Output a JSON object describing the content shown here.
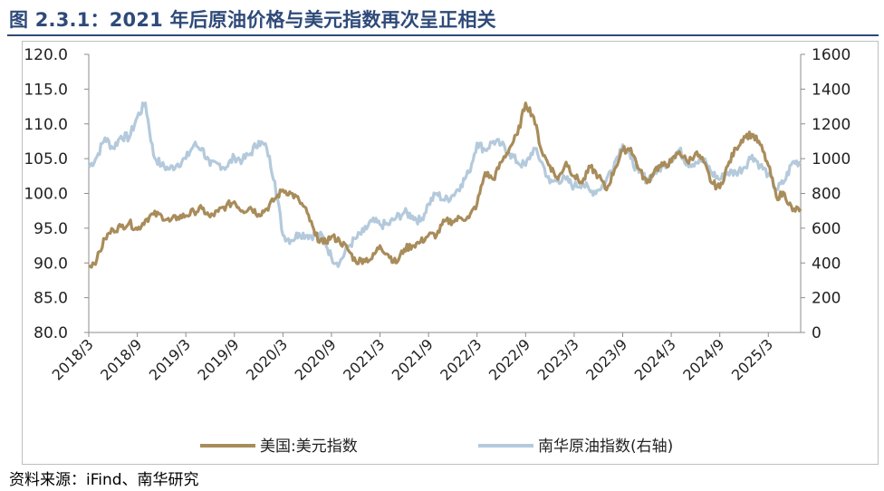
{
  "header": {
    "title": "图 2.3.1：2021 年后原油价格与美元指数再次呈正相关"
  },
  "footer": {
    "source": "资料来源：iFind、南华研究"
  },
  "chart_data": {
    "type": "line",
    "x_tick_labels": [
      "2018/3",
      "2018/9",
      "2019/3",
      "2019/9",
      "2020/3",
      "2020/9",
      "2021/3",
      "2021/9",
      "2022/3",
      "2022/9",
      "2023/3",
      "2023/9",
      "2024/3",
      "2024/9",
      "2025/3"
    ],
    "y_left": {
      "ticks": [
        "80.0",
        "85.0",
        "90.0",
        "95.0",
        "100.0",
        "105.0",
        "110.0",
        "115.0",
        "120.0"
      ],
      "range": [
        80,
        120
      ]
    },
    "y_right": {
      "ticks": [
        "0",
        "200",
        "400",
        "600",
        "800",
        "1000",
        "1200",
        "1400",
        "1600"
      ],
      "range": [
        0,
        1600
      ]
    },
    "legend_position": "bottom",
    "grid": false,
    "series": [
      {
        "name": "美国:美元指数",
        "axis": "left",
        "color": "#a88c5a",
        "points": [
          [
            "2018/3",
            89.5
          ],
          [
            "2018/4",
            90.5
          ],
          [
            "2018/5",
            93.5
          ],
          [
            "2018/6",
            94.8
          ],
          [
            "2018/7",
            95.2
          ],
          [
            "2018/8",
            95.8
          ],
          [
            "2018/9",
            94.8
          ],
          [
            "2018/10",
            96.2
          ],
          [
            "2018/11",
            97.0
          ],
          [
            "2018/12",
            96.8
          ],
          [
            "2019/1",
            96.0
          ],
          [
            "2019/2",
            96.6
          ],
          [
            "2019/3",
            96.8
          ],
          [
            "2019/4",
            97.4
          ],
          [
            "2019/5",
            97.8
          ],
          [
            "2019/6",
            96.6
          ],
          [
            "2019/7",
            97.4
          ],
          [
            "2019/8",
            98.2
          ],
          [
            "2019/9",
            98.8
          ],
          [
            "2019/10",
            97.5
          ],
          [
            "2019/11",
            98.0
          ],
          [
            "2019/12",
            97.0
          ],
          [
            "2020/1",
            97.8
          ],
          [
            "2020/2",
            99.2
          ],
          [
            "2020/3",
            100.5
          ],
          [
            "2020/4",
            100.0
          ],
          [
            "2020/5",
            99.0
          ],
          [
            "2020/6",
            97.2
          ],
          [
            "2020/7",
            94.0
          ],
          [
            "2020/8",
            92.8
          ],
          [
            "2020/9",
            93.8
          ],
          [
            "2020/10",
            93.2
          ],
          [
            "2020/11",
            92.0
          ],
          [
            "2020/12",
            90.2
          ],
          [
            "2021/1",
            90.5
          ],
          [
            "2021/2",
            90.6
          ],
          [
            "2021/3",
            92.5
          ],
          [
            "2021/4",
            91.2
          ],
          [
            "2021/5",
            90.0
          ],
          [
            "2021/6",
            92.0
          ],
          [
            "2021/7",
            92.5
          ],
          [
            "2021/8",
            93.0
          ],
          [
            "2021/9",
            94.0
          ],
          [
            "2021/10",
            94.0
          ],
          [
            "2021/11",
            96.0
          ],
          [
            "2021/12",
            96.0
          ],
          [
            "2022/1",
            96.5
          ],
          [
            "2022/2",
            96.5
          ],
          [
            "2022/3",
            98.5
          ],
          [
            "2022/4",
            103.0
          ],
          [
            "2022/5",
            102.0
          ],
          [
            "2022/6",
            104.5
          ],
          [
            "2022/7",
            106.5
          ],
          [
            "2022/8",
            108.5
          ],
          [
            "2022/9",
            113.0
          ],
          [
            "2022/10",
            111.0
          ],
          [
            "2022/11",
            106.0
          ],
          [
            "2022/12",
            104.0
          ],
          [
            "2023/1",
            102.0
          ],
          [
            "2023/2",
            104.5
          ],
          [
            "2023/3",
            102.5
          ],
          [
            "2023/4",
            101.5
          ],
          [
            "2023/5",
            103.8
          ],
          [
            "2023/6",
            102.5
          ],
          [
            "2023/7",
            100.5
          ],
          [
            "2023/8",
            103.5
          ],
          [
            "2023/9",
            106.2
          ],
          [
            "2023/10",
            106.5
          ],
          [
            "2023/11",
            103.5
          ],
          [
            "2023/12",
            101.5
          ],
          [
            "2024/1",
            103.5
          ],
          [
            "2024/2",
            104.0
          ],
          [
            "2024/3",
            104.5
          ],
          [
            "2024/4",
            106.0
          ],
          [
            "2024/5",
            104.5
          ],
          [
            "2024/6",
            105.8
          ],
          [
            "2024/7",
            104.5
          ],
          [
            "2024/8",
            101.5
          ],
          [
            "2024/9",
            100.8
          ],
          [
            "2024/10",
            104.0
          ],
          [
            "2024/11",
            106.5
          ],
          [
            "2024/12",
            108.2
          ],
          [
            "2025/1",
            108.5
          ],
          [
            "2025/2",
            107.0
          ],
          [
            "2025/3",
            104.0
          ],
          [
            "2025/4",
            99.5
          ],
          [
            "2025/5",
            100.0
          ],
          [
            "2025/6",
            97.5
          ],
          [
            "2025/7",
            97.8
          ]
        ]
      },
      {
        "name": "南华原油指数(右轴)",
        "axis": "right",
        "color": "#b4cadc",
        "points": [
          [
            "2018/3",
            950
          ],
          [
            "2018/4",
            1010
          ],
          [
            "2018/5",
            1120
          ],
          [
            "2018/6",
            1060
          ],
          [
            "2018/7",
            1130
          ],
          [
            "2018/8",
            1120
          ],
          [
            "2018/9",
            1240
          ],
          [
            "2018/10",
            1320
          ],
          [
            "2018/11",
            1020
          ],
          [
            "2018/12",
            960
          ],
          [
            "2019/1",
            940
          ],
          [
            "2019/2",
            970
          ],
          [
            "2019/3",
            1000
          ],
          [
            "2019/4",
            1080
          ],
          [
            "2019/5",
            1060
          ],
          [
            "2019/6",
            960
          ],
          [
            "2019/7",
            970
          ],
          [
            "2019/8",
            950
          ],
          [
            "2019/9",
            1010
          ],
          [
            "2019/10",
            990
          ],
          [
            "2019/11",
            1030
          ],
          [
            "2019/12",
            1100
          ],
          [
            "2020/1",
            1060
          ],
          [
            "2020/2",
            870
          ],
          [
            "2020/3",
            560
          ],
          [
            "2020/4",
            530
          ],
          [
            "2020/5",
            570
          ],
          [
            "2020/6",
            560
          ],
          [
            "2020/7",
            560
          ],
          [
            "2020/8",
            550
          ],
          [
            "2020/9",
            430
          ],
          [
            "2020/10",
            400
          ],
          [
            "2020/11",
            490
          ],
          [
            "2020/12",
            540
          ],
          [
            "2021/1",
            580
          ],
          [
            "2021/2",
            640
          ],
          [
            "2021/3",
            620
          ],
          [
            "2021/4",
            620
          ],
          [
            "2021/5",
            660
          ],
          [
            "2021/6",
            690
          ],
          [
            "2021/7",
            670
          ],
          [
            "2021/8",
            640
          ],
          [
            "2021/9",
            740
          ],
          [
            "2021/10",
            800
          ],
          [
            "2021/11",
            760
          ],
          [
            "2021/12",
            790
          ],
          [
            "2022/1",
            850
          ],
          [
            "2022/2",
            920
          ],
          [
            "2022/3",
            1090
          ],
          [
            "2022/4",
            1050
          ],
          [
            "2022/5",
            1100
          ],
          [
            "2022/6",
            1080
          ],
          [
            "2022/7",
            1030
          ],
          [
            "2022/8",
            980
          ],
          [
            "2022/9",
            960
          ],
          [
            "2022/10",
            1060
          ],
          [
            "2022/11",
            980
          ],
          [
            "2022/12",
            860
          ],
          [
            "2023/1",
            880
          ],
          [
            "2023/2",
            880
          ],
          [
            "2023/3",
            840
          ],
          [
            "2023/4",
            860
          ],
          [
            "2023/5",
            810
          ],
          [
            "2023/6",
            820
          ],
          [
            "2023/7",
            880
          ],
          [
            "2023/8",
            980
          ],
          [
            "2023/9",
            1080
          ],
          [
            "2023/10",
            1000
          ],
          [
            "2023/11",
            920
          ],
          [
            "2023/12",
            880
          ],
          [
            "2024/1",
            920
          ],
          [
            "2024/2",
            960
          ],
          [
            "2024/3",
            1000
          ],
          [
            "2024/4",
            1050
          ],
          [
            "2024/5",
            970
          ],
          [
            "2024/6",
            980
          ],
          [
            "2024/7",
            990
          ],
          [
            "2024/8",
            920
          ],
          [
            "2024/9",
            880
          ],
          [
            "2024/10",
            920
          ],
          [
            "2024/11",
            920
          ],
          [
            "2024/12",
            950
          ],
          [
            "2025/1",
            1020
          ],
          [
            "2025/2",
            960
          ],
          [
            "2025/3",
            910
          ],
          [
            "2025/4",
            820
          ],
          [
            "2025/5",
            870
          ],
          [
            "2025/6",
            980
          ],
          [
            "2025/7",
            980
          ]
        ]
      }
    ]
  }
}
